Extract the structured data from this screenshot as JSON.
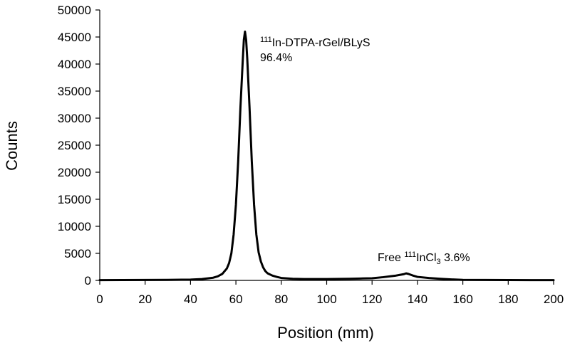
{
  "chart_data": {
    "type": "line",
    "title": "",
    "xlabel": "Position (mm)",
    "ylabel": "Counts",
    "xlim": [
      0,
      200
    ],
    "ylim": [
      0,
      50000
    ],
    "x_ticks": [
      0,
      20,
      40,
      60,
      80,
      100,
      120,
      140,
      160,
      180,
      200
    ],
    "y_ticks": [
      0,
      5000,
      10000,
      15000,
      20000,
      25000,
      30000,
      35000,
      40000,
      45000,
      50000
    ],
    "grid": false,
    "legend": "none",
    "line_color": "#000000",
    "series": [
      {
        "x": [
          0,
          10,
          20,
          30,
          40,
          45,
          50,
          52,
          54,
          56,
          57,
          58,
          59,
          60,
          61,
          62,
          63,
          63.5,
          64,
          64.5,
          65,
          66,
          67,
          68,
          69,
          70,
          71,
          72,
          73,
          74,
          76,
          78,
          80,
          85,
          90,
          100,
          110,
          115,
          120,
          125,
          128,
          130,
          132,
          134,
          135,
          136,
          138,
          140,
          145,
          150,
          155,
          160,
          170,
          180,
          190,
          200
        ],
        "y": [
          50,
          60,
          80,
          100,
          150,
          250,
          500,
          750,
          1200,
          2200,
          3200,
          5000,
          8500,
          14000,
          22000,
          32000,
          40500,
          44500,
          46000,
          44500,
          41000,
          32000,
          22000,
          14000,
          8500,
          5200,
          3500,
          2400,
          1700,
          1300,
          900,
          650,
          450,
          300,
          250,
          250,
          300,
          350,
          400,
          600,
          750,
          850,
          1000,
          1150,
          1300,
          1200,
          900,
          650,
          450,
          300,
          180,
          100,
          80,
          60,
          50,
          50
        ]
      }
    ],
    "annotations": [
      {
        "prefix": "",
        "sup": "111",
        "main": "In-DTPA-rGel/BLyS",
        "line2": "96.4%"
      },
      {
        "prefix": "Free ",
        "sup": "111",
        "main": "InCl",
        "sub": "3",
        "suffix": " 3.6%"
      }
    ]
  }
}
